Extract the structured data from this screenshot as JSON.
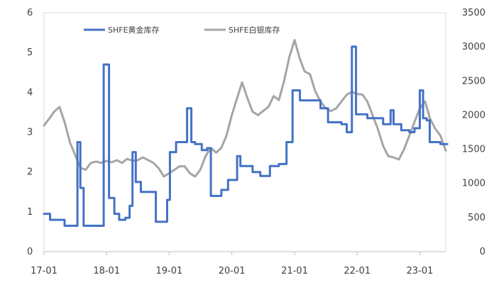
{
  "chart_data": {
    "type": "line",
    "x_ticks": [
      "17-01",
      "18-01",
      "19-01",
      "20-01",
      "21-01",
      "22-01",
      "23-01"
    ],
    "x_range": [
      "2017-01",
      "2023-06"
    ],
    "y_left": {
      "ylim": [
        0,
        6
      ],
      "ticks": [
        "0",
        "1",
        "2",
        "3",
        "4",
        "5",
        "6"
      ]
    },
    "y_right": {
      "ylim": [
        0,
        3500
      ],
      "ticks": [
        "0",
        "500",
        "1000",
        "1500",
        "2000",
        "2500",
        "3000",
        "3500"
      ]
    },
    "legend_placement": "top-center",
    "grid": false,
    "series": [
      {
        "name": "SHFE黄金库存",
        "axis": "left",
        "color": "#4472C4",
        "step": true,
        "points": [
          [
            "2017-01-01",
            0.95
          ],
          [
            "2017-02-05",
            0.8
          ],
          [
            "2017-05-01",
            0.65
          ],
          [
            "2017-07-15",
            2.75
          ],
          [
            "2017-08-01",
            1.6
          ],
          [
            "2017-08-20",
            0.65
          ],
          [
            "2017-12-15",
            4.7
          ],
          [
            "2018-01-15",
            1.35
          ],
          [
            "2018-02-15",
            0.95
          ],
          [
            "2018-03-15",
            0.8
          ],
          [
            "2018-04-20",
            0.85
          ],
          [
            "2018-05-15",
            1.15
          ],
          [
            "2018-06-01",
            2.5
          ],
          [
            "2018-06-20",
            1.75
          ],
          [
            "2018-07-20",
            1.5
          ],
          [
            "2018-10-15",
            0.75
          ],
          [
            "2018-12-20",
            1.3
          ],
          [
            "2019-01-05",
            2.5
          ],
          [
            "2019-02-10",
            2.75
          ],
          [
            "2019-04-15",
            3.6
          ],
          [
            "2019-05-10",
            2.75
          ],
          [
            "2019-06-01",
            2.7
          ],
          [
            "2019-07-10",
            2.55
          ],
          [
            "2019-08-10",
            2.6
          ],
          [
            "2019-09-01",
            1.4
          ],
          [
            "2019-11-01",
            1.55
          ],
          [
            "2019-12-10",
            1.8
          ],
          [
            "2020-02-01",
            2.4
          ],
          [
            "2020-02-20",
            2.15
          ],
          [
            "2020-05-01",
            2.0
          ],
          [
            "2020-06-15",
            1.9
          ],
          [
            "2020-08-10",
            2.15
          ],
          [
            "2020-10-01",
            2.2
          ],
          [
            "2020-11-15",
            2.75
          ],
          [
            "2020-12-20",
            4.05
          ],
          [
            "2021-02-01",
            3.8
          ],
          [
            "2021-06-01",
            3.6
          ],
          [
            "2021-07-15",
            3.25
          ],
          [
            "2021-10-01",
            3.2
          ],
          [
            "2021-11-01",
            3.0
          ],
          [
            "2021-12-01",
            5.15
          ],
          [
            "2021-12-25",
            3.45
          ],
          [
            "2022-03-01",
            3.35
          ],
          [
            "2022-06-01",
            3.2
          ],
          [
            "2022-07-15",
            3.55
          ],
          [
            "2022-08-01",
            3.2
          ],
          [
            "2022-09-15",
            3.05
          ],
          [
            "2022-11-01",
            3.0
          ],
          [
            "2022-12-01",
            3.1
          ],
          [
            "2023-01-01",
            4.05
          ],
          [
            "2023-01-20",
            3.35
          ],
          [
            "2023-02-10",
            3.3
          ],
          [
            "2023-02-28",
            2.75
          ],
          [
            "2023-05-01",
            2.7
          ],
          [
            "2023-06-10",
            2.7
          ]
        ]
      },
      {
        "name": "SHFE白银库存",
        "axis": "right",
        "color": "#A5A5A5",
        "step": false,
        "points": [
          [
            "2017-01-01",
            1850
          ],
          [
            "2017-02-01",
            1950
          ],
          [
            "2017-03-01",
            2050
          ],
          [
            "2017-04-01",
            2120
          ],
          [
            "2017-05-01",
            1900
          ],
          [
            "2017-06-01",
            1600
          ],
          [
            "2017-07-01",
            1420
          ],
          [
            "2017-08-01",
            1230
          ],
          [
            "2017-09-01",
            1200
          ],
          [
            "2017-10-01",
            1300
          ],
          [
            "2017-11-01",
            1320
          ],
          [
            "2017-12-01",
            1300
          ],
          [
            "2018-01-01",
            1330
          ],
          [
            "2018-02-01",
            1310
          ],
          [
            "2018-03-01",
            1340
          ],
          [
            "2018-04-01",
            1300
          ],
          [
            "2018-05-01",
            1360
          ],
          [
            "2018-06-01",
            1330
          ],
          [
            "2018-07-01",
            1340
          ],
          [
            "2018-08-01",
            1380
          ],
          [
            "2018-09-01",
            1340
          ],
          [
            "2018-10-01",
            1300
          ],
          [
            "2018-11-01",
            1220
          ],
          [
            "2018-12-01",
            1100
          ],
          [
            "2019-01-01",
            1150
          ],
          [
            "2019-02-01",
            1200
          ],
          [
            "2019-03-01",
            1250
          ],
          [
            "2019-04-01",
            1250
          ],
          [
            "2019-05-01",
            1150
          ],
          [
            "2019-06-01",
            1100
          ],
          [
            "2019-07-01",
            1200
          ],
          [
            "2019-08-01",
            1400
          ],
          [
            "2019-09-01",
            1520
          ],
          [
            "2019-10-01",
            1450
          ],
          [
            "2019-11-01",
            1520
          ],
          [
            "2019-12-01",
            1700
          ],
          [
            "2020-01-01",
            2000
          ],
          [
            "2020-02-01",
            2250
          ],
          [
            "2020-03-01",
            2480
          ],
          [
            "2020-04-01",
            2250
          ],
          [
            "2020-05-01",
            2050
          ],
          [
            "2020-06-01",
            2000
          ],
          [
            "2020-07-01",
            2060
          ],
          [
            "2020-08-01",
            2120
          ],
          [
            "2020-09-01",
            2280
          ],
          [
            "2020-10-01",
            2220
          ],
          [
            "2020-11-01",
            2500
          ],
          [
            "2020-12-01",
            2850
          ],
          [
            "2021-01-01",
            3100
          ],
          [
            "2021-02-01",
            2820
          ],
          [
            "2021-03-01",
            2640
          ],
          [
            "2021-04-01",
            2600
          ],
          [
            "2021-05-01",
            2350
          ],
          [
            "2021-06-01",
            2200
          ],
          [
            "2021-07-01",
            2100
          ],
          [
            "2021-08-01",
            2060
          ],
          [
            "2021-09-01",
            2100
          ],
          [
            "2021-10-01",
            2200
          ],
          [
            "2021-11-01",
            2300
          ],
          [
            "2021-12-01",
            2340
          ],
          [
            "2022-01-01",
            2310
          ],
          [
            "2022-02-01",
            2300
          ],
          [
            "2022-03-01",
            2200
          ],
          [
            "2022-04-01",
            2000
          ],
          [
            "2022-05-01",
            1800
          ],
          [
            "2022-06-01",
            1550
          ],
          [
            "2022-07-01",
            1400
          ],
          [
            "2022-08-01",
            1380
          ],
          [
            "2022-09-01",
            1350
          ],
          [
            "2022-10-01",
            1500
          ],
          [
            "2022-11-01",
            1700
          ],
          [
            "2022-12-01",
            1900
          ],
          [
            "2023-01-01",
            2100
          ],
          [
            "2023-02-01",
            2200
          ],
          [
            "2023-03-01",
            1950
          ],
          [
            "2023-04-01",
            1800
          ],
          [
            "2023-05-01",
            1700
          ],
          [
            "2023-06-01",
            1480
          ]
        ]
      }
    ]
  }
}
